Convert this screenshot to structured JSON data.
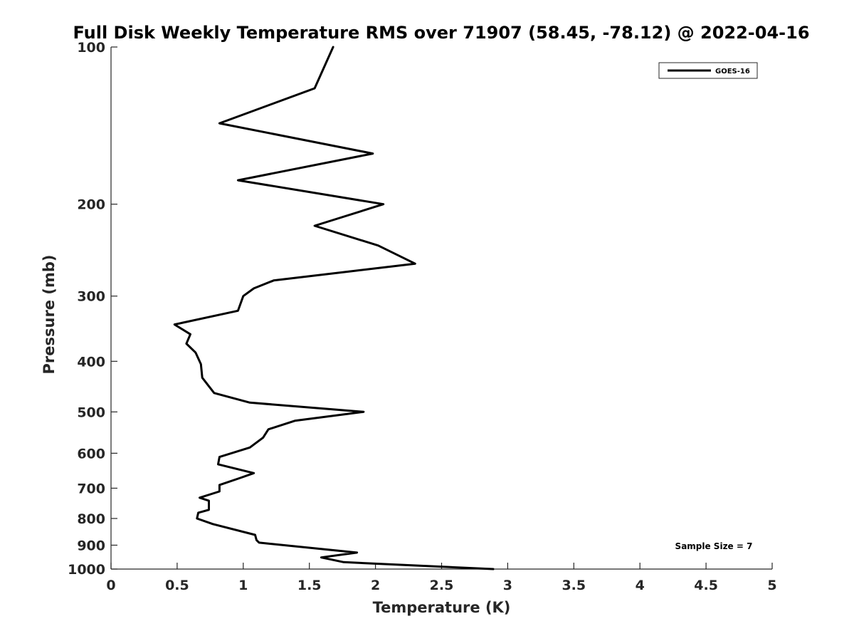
{
  "chart_data": {
    "type": "line",
    "title": "Full Disk Weekly Temperature RMS over 71907 (58.45, -78.12) @ 2022-04-16",
    "xlabel": "Temperature (K)",
    "ylabel": "Pressure (mb)",
    "xlim": [
      0,
      5
    ],
    "ylim": [
      100,
      1000
    ],
    "yscale": "log",
    "y_reversed": true,
    "grid": false,
    "legend_position": "top-right",
    "x_ticks": [
      0,
      0.5,
      1,
      1.5,
      2,
      2.5,
      3,
      3.5,
      4,
      4.5,
      5
    ],
    "x_tick_labels": [
      "0",
      "0.5",
      "1",
      "1.5",
      "2",
      "2.5",
      "3",
      "3.5",
      "4",
      "4.5",
      "5"
    ],
    "y_ticks": [
      100,
      200,
      300,
      400,
      500,
      600,
      700,
      800,
      900,
      1000
    ],
    "y_tick_labels": [
      "100",
      "200",
      "300",
      "400",
      "500",
      "600",
      "700",
      "800",
      "900",
      "1000"
    ],
    "series": [
      {
        "name": "GOES-16",
        "color": "#000000",
        "x": [
          1.68,
          1.54,
          0.82,
          1.98,
          0.96,
          2.06,
          1.54,
          2.02,
          2.3,
          1.23,
          1.08,
          1.0,
          0.96,
          0.48,
          0.6,
          0.57,
          0.64,
          0.68,
          0.69,
          0.78,
          1.05,
          1.91,
          1.39,
          1.19,
          1.15,
          1.05,
          0.82,
          0.81,
          1.08,
          0.97,
          0.82,
          0.82,
          0.67,
          0.74,
          0.74,
          0.66,
          0.65,
          0.77,
          1.09,
          1.1,
          1.12,
          1.86,
          1.59,
          1.76,
          2.89
        ],
        "y": [
          100,
          120,
          140,
          160,
          180,
          200,
          220,
          240,
          260,
          280,
          290,
          300,
          320,
          340,
          355,
          370,
          385,
          405,
          430,
          460,
          480,
          500,
          520,
          540,
          560,
          585,
          610,
          630,
          655,
          670,
          690,
          710,
          730,
          740,
          770,
          780,
          800,
          820,
          860,
          880,
          890,
          930,
          950,
          970,
          1000
        ]
      }
    ],
    "legend": [
      "GOES-16"
    ],
    "annotation": "Sample Size = 7"
  }
}
